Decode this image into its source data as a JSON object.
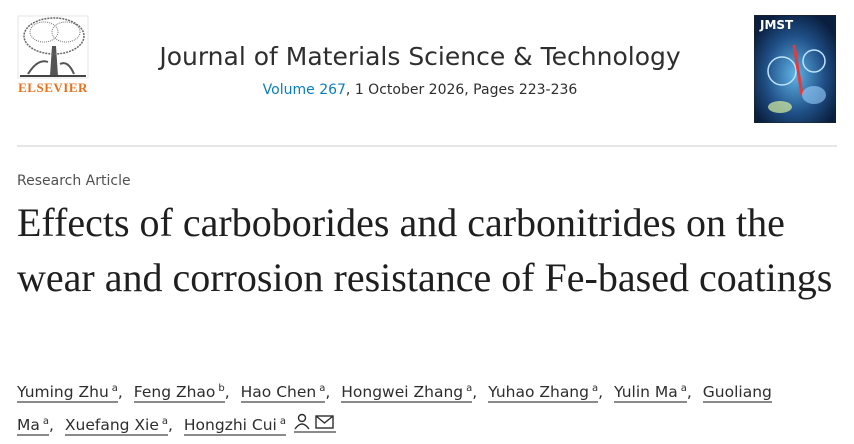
{
  "header": {
    "publisher": "ELSEVIER",
    "journal": "Journal of Materials Science & Technology",
    "volume_link": "Volume 267",
    "issue_info": ", 1 October 2026, Pages 223-236",
    "cover_label": "JMST"
  },
  "article": {
    "type": "Research Article",
    "title": "Effects of carboborides and carbonitrides on the wear and corrosion resistance of Fe-based coatings",
    "separator": ",",
    "authors": [
      {
        "name": "Yuming Zhu",
        "affiliation": "a"
      },
      {
        "name": "Feng Zhao",
        "affiliation": "b"
      },
      {
        "name": "Hao Chen",
        "affiliation": "a"
      },
      {
        "name": "Hongwei Zhang",
        "affiliation": "a"
      },
      {
        "name": "Yuhao Zhang",
        "affiliation": "a"
      },
      {
        "name": "Yulin Ma",
        "affiliation": "a"
      },
      {
        "name": "Guoliang Ma",
        "affiliation": "a"
      },
      {
        "name": "Xuefang Xie",
        "affiliation": "a"
      },
      {
        "name": "Hongzhi Cui",
        "affiliation": "a"
      }
    ]
  }
}
